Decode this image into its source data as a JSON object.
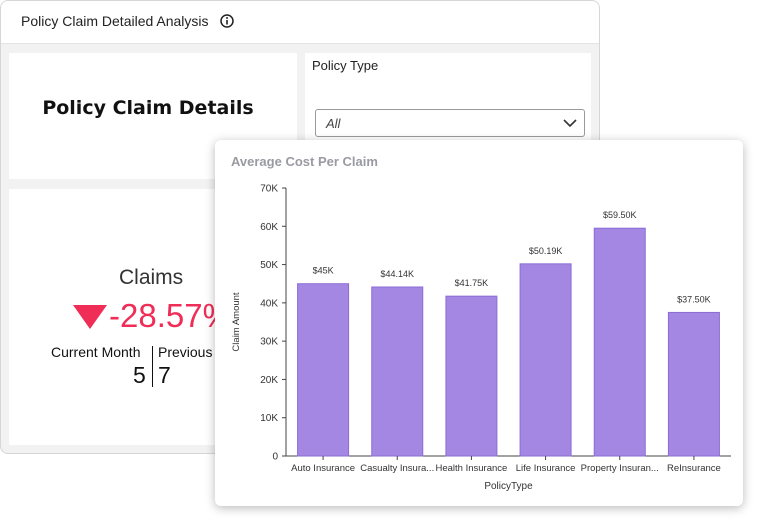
{
  "header": {
    "title": "Policy Claim Detailed Analysis",
    "info_icon": "info-icon"
  },
  "details_tile": {
    "title": "Policy Claim Details"
  },
  "filter": {
    "label": "Policy Type",
    "selected": "All",
    "caret_icon": "chevron-down-icon"
  },
  "kpi": {
    "title": "Claims",
    "change": "-28.57%",
    "trend_icon": "triangle-down-icon",
    "trend_color": "#ef2d56",
    "current_label": "Current Month",
    "current_value": "5",
    "previous_label": "Previous",
    "previous_value": "7"
  },
  "chart_card": {
    "title": "Average Cost Per Claim"
  },
  "chart_data": {
    "type": "bar",
    "title": "Average Cost Per Claim",
    "xlabel": "PolicyType",
    "ylabel": "Claim Amount",
    "categories": [
      "Auto Insurance",
      "Casualty Insura...",
      "Health Insurance",
      "Life Insurance",
      "Property Insuran...",
      "ReInsurance"
    ],
    "values": [
      45000,
      44140,
      41750,
      50190,
      59500,
      37500
    ],
    "data_labels": [
      "$45K",
      "$44.14K",
      "$41.75K",
      "$50.19K",
      "$59.50K",
      "$37.50K"
    ],
    "ylim": [
      0,
      70000
    ],
    "yticks": [
      0,
      10000,
      20000,
      30000,
      40000,
      50000,
      60000,
      70000
    ],
    "ytick_labels": [
      "0",
      "10K",
      "20K",
      "30K",
      "40K",
      "50K",
      "60K",
      "70K"
    ],
    "bar_color": "#a487e3",
    "bar_stroke": "#8b6cd6",
    "grid": false
  }
}
